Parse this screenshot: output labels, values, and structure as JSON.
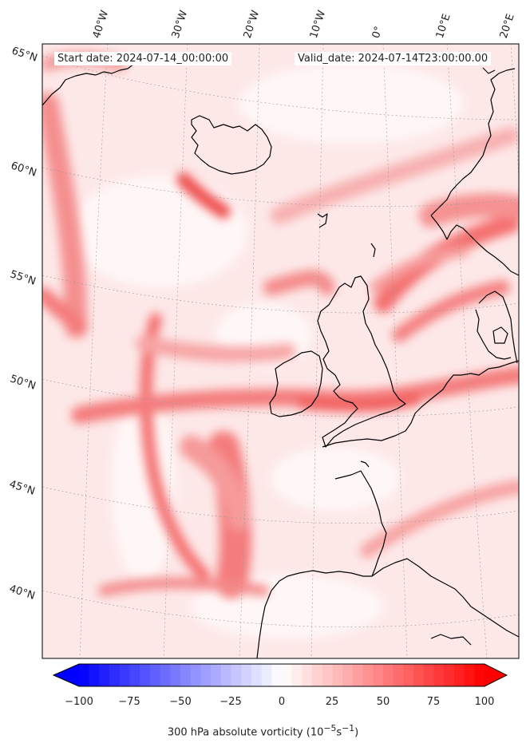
{
  "header": {
    "start_date": "Start date: 2024-07-14_00:00:00",
    "valid_date": "Valid_date: 2024-07-14T23:00:00.00"
  },
  "graticule": {
    "lon_labels": [
      "40°W",
      "30°W",
      "20°W",
      "10°W",
      "0°",
      "10°E",
      "20°E"
    ],
    "lat_labels": [
      "65°N",
      "60°N",
      "55°N",
      "50°N",
      "45°N",
      "40°N"
    ]
  },
  "colorbar": {
    "ticks": [
      "−100",
      "−75",
      "−50",
      "−25",
      "0",
      "25",
      "50",
      "75",
      "100"
    ],
    "range": [
      -100,
      100
    ],
    "low_color": "#0000ff",
    "mid_color": "#ffffff",
    "high_color": "#ff0000",
    "label_prefix": "300 hPa absolute vorticity (10",
    "label_exp1": "−5",
    "label_mid": "s",
    "label_exp2": "−1",
    "label_suffix": ")"
  },
  "field": {
    "name": "300 hPa absolute vorticity",
    "colormap": "bwr",
    "background_color": "#fde3e3"
  },
  "coastline_color": "#000000"
}
